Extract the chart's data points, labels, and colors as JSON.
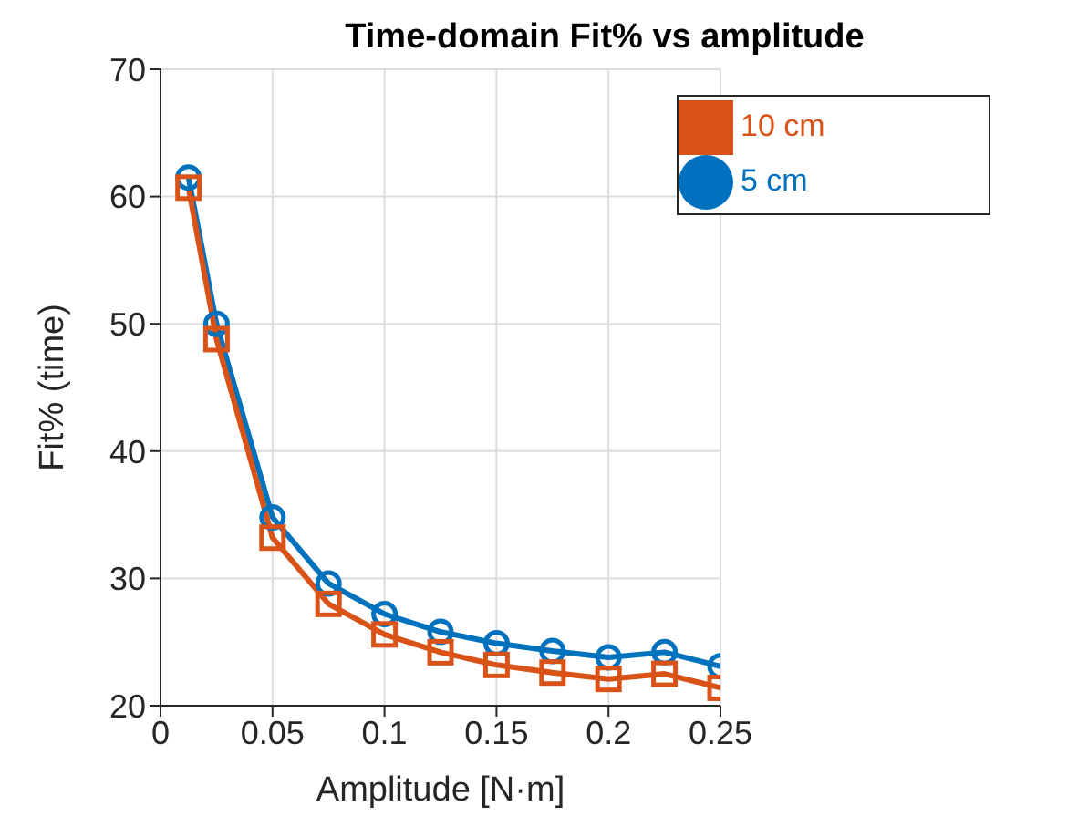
{
  "chart_data": {
    "type": "line",
    "title": "Time-domain Fit% vs amplitude",
    "xlabel": "Amplitude [N·m]",
    "ylabel": "Fit% (time)",
    "x": [
      0.0125,
      0.025,
      0.05,
      0.075,
      0.1,
      0.125,
      0.15,
      0.175,
      0.2,
      0.225,
      0.25
    ],
    "series": [
      {
        "name": "5 cm",
        "color": "#0072bd",
        "marker": "circle",
        "values": [
          61.5,
          50,
          34.8,
          29.6,
          27.2,
          25.8,
          24.9,
          24.3,
          23.8,
          24.2,
          23.1
        ]
      },
      {
        "name": "10 cm",
        "color": "#d95319",
        "marker": "square",
        "values": [
          60.7,
          48.8,
          33.2,
          28.0,
          25.6,
          24.2,
          23.2,
          22.6,
          22.1,
          22.5,
          21.4
        ]
      }
    ],
    "xlim": [
      0,
      0.25
    ],
    "xticks": [
      0,
      0.05,
      0.1,
      0.15,
      0.2,
      0.25
    ],
    "ylim": [
      20,
      70
    ],
    "yticks": [
      20,
      30,
      40,
      50,
      60,
      70
    ],
    "grid": true,
    "legend": "top right",
    "line_style": "solid"
  }
}
